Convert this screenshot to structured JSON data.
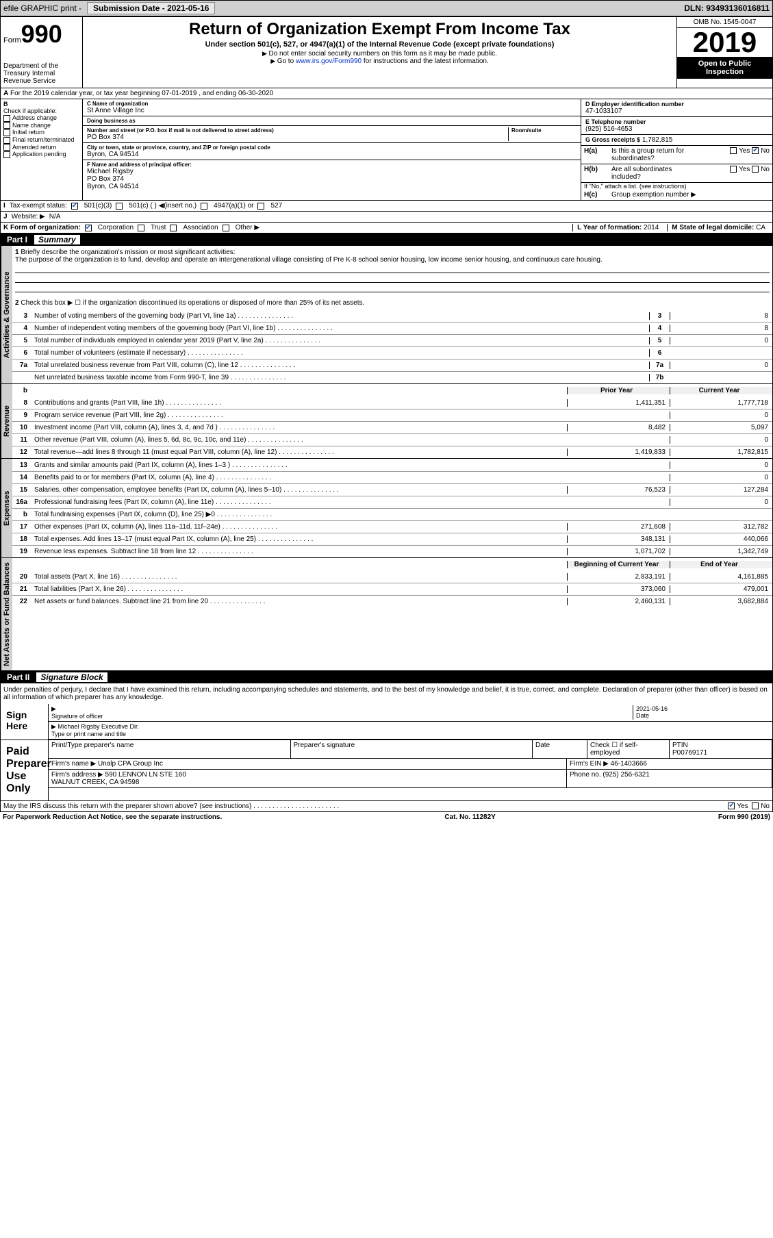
{
  "topbar": {
    "efile": "efile GRAPHIC print -",
    "sub_label": "Submission Date -",
    "sub_date": "2021-05-16",
    "dln": "DLN: 93493136016811"
  },
  "header": {
    "form_word": "Form",
    "form_num": "990",
    "dept": "Department of the Treasury\nInternal Revenue Service",
    "title": "Return of Organization Exempt From Income Tax",
    "subtitle": "Under section 501(c), 527, or 4947(a)(1) of the Internal Revenue Code (except private foundations)",
    "note1": "Do not enter social security numbers on this form as it may be made public.",
    "note2_pre": "Go to ",
    "note2_link": "www.irs.gov/Form990",
    "note2_post": " for instructions and the latest information.",
    "omb": "OMB No. 1545-0047",
    "year": "2019",
    "badge": "Open to Public Inspection"
  },
  "row_a": "For the 2019 calendar year, or tax year beginning 07-01-2019    , and ending 06-30-2020",
  "col_b": {
    "label": "Check if applicable:",
    "items": [
      "Address change",
      "Name change",
      "Initial return",
      "Final return/terminated",
      "Amended return",
      "Application pending"
    ]
  },
  "col_c": {
    "name_lbl": "C Name of organization",
    "name": "St Anne Village Inc",
    "dba_lbl": "Doing business as",
    "dba": "",
    "addr_lbl": "Number and street (or P.O. box if mail is not delivered to street address)",
    "room_lbl": "Room/suite",
    "addr": "PO Box 374",
    "city_lbl": "City or town, state or province, country, and ZIP or foreign postal code",
    "city": "Byron, CA  94514",
    "f_lbl": "F  Name and address of principal officer:",
    "f_name": "Michael Rigsby",
    "f_addr1": "PO Box 374",
    "f_addr2": "Byron, CA  94514"
  },
  "col_d": {
    "ein_lbl": "D Employer identification number",
    "ein": "47-1033107",
    "tel_lbl": "E Telephone number",
    "tel": "(925) 516-4653",
    "gross_lbl": "G Gross receipts $",
    "gross": "1,782,815"
  },
  "h": {
    "a": "Is this a group return for subordinates?",
    "b": "Are all subordinates included?",
    "b_note": "If \"No,\" attach a list. (see instructions)",
    "c": "Group exemption number ▶",
    "yes": "Yes",
    "no": "No"
  },
  "tax_status": {
    "lbl": "Tax-exempt status:",
    "opts": [
      "501(c)(3)",
      "501(c) (  ) ◀(insert no.)",
      "4947(a)(1) or",
      "527"
    ]
  },
  "website": {
    "lbl": "Website: ▶",
    "val": "N/A"
  },
  "k": {
    "lbl": "K Form of organization:",
    "opts": [
      "Corporation",
      "Trust",
      "Association",
      "Other ▶"
    ]
  },
  "l": {
    "lbl": "L Year of formation:",
    "val": "2014"
  },
  "m": {
    "lbl": "M State of legal domicile:",
    "val": "CA"
  },
  "part1": {
    "num": "Part I",
    "title": "Summary",
    "q1_lbl": "1",
    "q1": "Briefly describe the organization's mission or most significant activities:",
    "q1_ans": "The purpose of the organization is to fund, develop and operate an intergenerational village consisting of Pre K-8 school senior housing, low income senior housing, and continuous care housing.",
    "q2_lbl": "2",
    "q2": "Check this box ▶ ☐ if the organization discontinued its operations or disposed of more than 25% of its net assets.",
    "lines_gov": [
      {
        "n": "3",
        "t": "Number of voting members of the governing body (Part VI, line 1a)",
        "cn": "3",
        "v": "8"
      },
      {
        "n": "4",
        "t": "Number of independent voting members of the governing body (Part VI, line 1b)",
        "cn": "4",
        "v": "8"
      },
      {
        "n": "5",
        "t": "Total number of individuals employed in calendar year 2019 (Part V, line 2a)",
        "cn": "5",
        "v": "0"
      },
      {
        "n": "6",
        "t": "Total number of volunteers (estimate if necessary)",
        "cn": "6",
        "v": ""
      },
      {
        "n": "7a",
        "t": "Total unrelated business revenue from Part VIII, column (C), line 12",
        "cn": "7a",
        "v": "0"
      },
      {
        "n": "",
        "t": "Net unrelated business taxable income from Form 990-T, line 39",
        "cn": "7b",
        "v": ""
      }
    ],
    "hdr_py": "Prior Year",
    "hdr_cy": "Current Year",
    "lines_rev": [
      {
        "n": "8",
        "t": "Contributions and grants (Part VIII, line 1h)",
        "py": "1,411,351",
        "cy": "1,777,718"
      },
      {
        "n": "9",
        "t": "Program service revenue (Part VIII, line 2g)",
        "py": "",
        "cy": "0"
      },
      {
        "n": "10",
        "t": "Investment income (Part VIII, column (A), lines 3, 4, and 7d )",
        "py": "8,482",
        "cy": "5,097"
      },
      {
        "n": "11",
        "t": "Other revenue (Part VIII, column (A), lines 5, 6d, 8c, 9c, 10c, and 11e)",
        "py": "",
        "cy": "0"
      },
      {
        "n": "12",
        "t": "Total revenue—add lines 8 through 11 (must equal Part VIII, column (A), line 12)",
        "py": "1,419,833",
        "cy": "1,782,815"
      }
    ],
    "lines_exp": [
      {
        "n": "13",
        "t": "Grants and similar amounts paid (Part IX, column (A), lines 1–3 )",
        "py": "",
        "cy": "0"
      },
      {
        "n": "14",
        "t": "Benefits paid to or for members (Part IX, column (A), line 4)",
        "py": "",
        "cy": "0"
      },
      {
        "n": "15",
        "t": "Salaries, other compensation, employee benefits (Part IX, column (A), lines 5–10)",
        "py": "76,523",
        "cy": "127,284"
      },
      {
        "n": "16a",
        "t": "Professional fundraising fees (Part IX, column (A), line 11e)",
        "py": "",
        "cy": "0"
      },
      {
        "n": "b",
        "t": "Total fundraising expenses (Part IX, column (D), line 25) ▶0",
        "py": "",
        "cy": "",
        "grey": true
      },
      {
        "n": "17",
        "t": "Other expenses (Part IX, column (A), lines 11a–11d, 11f–24e)",
        "py": "271,608",
        "cy": "312,782"
      },
      {
        "n": "18",
        "t": "Total expenses. Add lines 13–17 (must equal Part IX, column (A), line 25)",
        "py": "348,131",
        "cy": "440,066"
      },
      {
        "n": "19",
        "t": "Revenue less expenses. Subtract line 18 from line 12",
        "py": "1,071,702",
        "cy": "1,342,749"
      }
    ],
    "hdr_bcy": "Beginning of Current Year",
    "hdr_eoy": "End of Year",
    "lines_net": [
      {
        "n": "20",
        "t": "Total assets (Part X, line 16)",
        "py": "2,833,191",
        "cy": "4,161,885"
      },
      {
        "n": "21",
        "t": "Total liabilities (Part X, line 26)",
        "py": "373,060",
        "cy": "479,001"
      },
      {
        "n": "22",
        "t": "Net assets or fund balances. Subtract line 21 from line 20",
        "py": "2,460,131",
        "cy": "3,682,884"
      }
    ],
    "vlabel_gov": "Activities & Governance",
    "vlabel_rev": "Revenue",
    "vlabel_exp": "Expenses",
    "vlabel_net": "Net Assets or Fund Balances"
  },
  "part2": {
    "num": "Part II",
    "title": "Signature Block",
    "decl": "Under penalties of perjury, I declare that I have examined this return, including accompanying schedules and statements, and to the best of my knowledge and belief, it is true, correct, and complete. Declaration of preparer (other than officer) is based on all information of which preparer has any knowledge.",
    "sign_here": "Sign Here",
    "sig_officer_lbl": "Signature of officer",
    "date_lbl": "Date",
    "sig_date": "2021-05-16",
    "officer_name": "Michael Rigsby  Executive Dir.",
    "officer_lbl": "Type or print name and title",
    "paid_prep": "Paid Preparer Use Only",
    "prep_cols": [
      "Print/Type preparer's name",
      "Preparer's signature",
      "Date",
      "Check ☐ if self-employed",
      "PTIN\nP00769171"
    ],
    "firm_name_lbl": "Firm's name    ▶",
    "firm_name": "Unalp CPA Group Inc",
    "firm_ein_lbl": "Firm's EIN ▶",
    "firm_ein": "46-1403666",
    "firm_addr_lbl": "Firm's address ▶",
    "firm_addr1": "590 LENNON LN STE 160",
    "firm_addr2": "WALNUT CREEK, CA  94598",
    "phone_lbl": "Phone no.",
    "phone": "(925) 256-6321",
    "discuss": "May the IRS discuss this return with the preparer shown above? (see instructions)",
    "yes": "Yes",
    "no": "No"
  },
  "footer": {
    "left": "For Paperwork Reduction Act Notice, see the separate instructions.",
    "mid": "Cat. No. 11282Y",
    "right": "Form 990 (2019)"
  }
}
